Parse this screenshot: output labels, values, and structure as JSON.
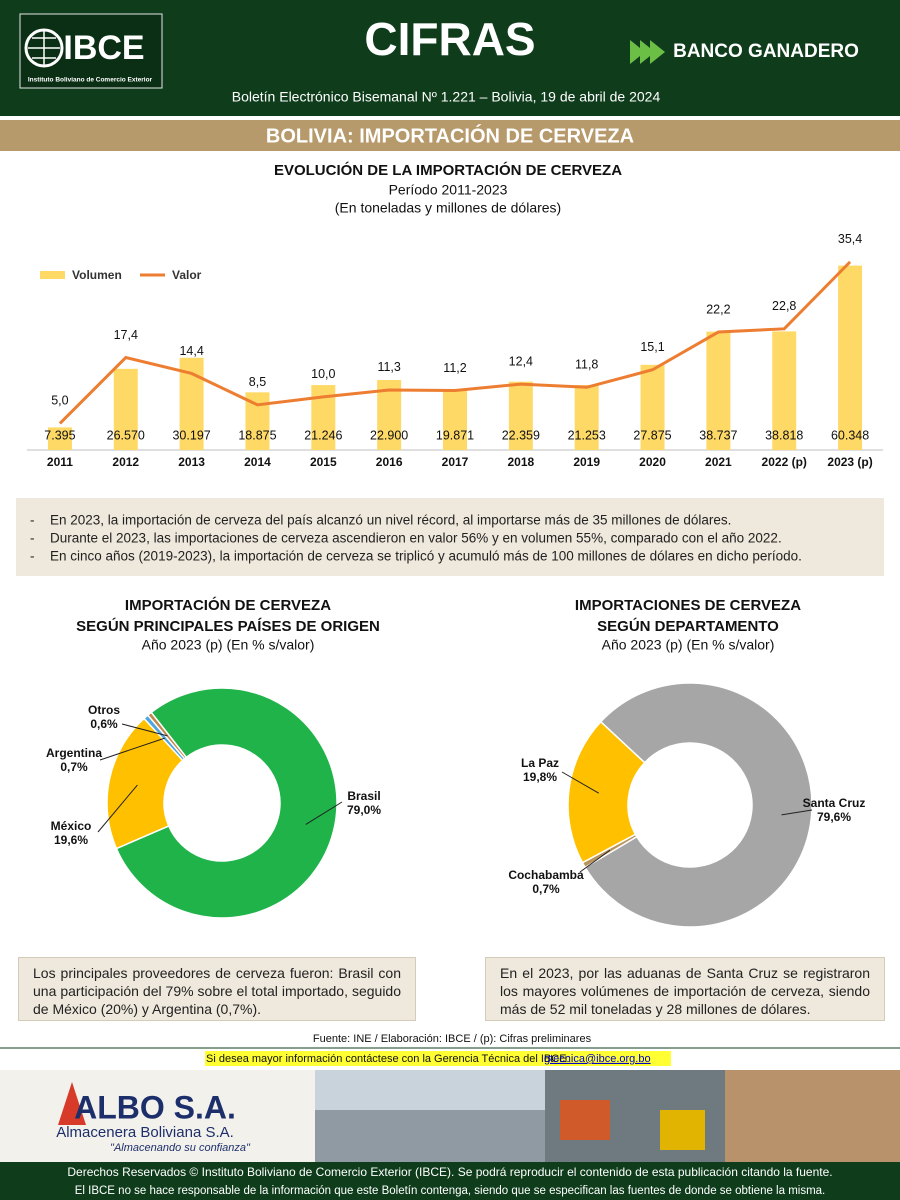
{
  "header": {
    "logo": "IBCE",
    "logo_caption": "Instituto Boliviano de Comercio Exterior",
    "title": "CIFRAS",
    "sponsor": "BANCO GANADERO",
    "bulletin": "Boletín Electrónico Bisemanal Nº 1.221 – Bolivia, 19 de abril de 2024"
  },
  "section_title": "BOLIVIA: IMPORTACIÓN DE CERVEZA",
  "chart_data": [
    {
      "type": "bar-line",
      "title": "EVOLUCIÓN DE LA IMPORTACIÓN DE CERVEZA",
      "subtitle": [
        "Período 2011-2023",
        "(En toneladas y millones de dólares)"
      ],
      "categories": [
        "2011",
        "2012",
        "2013",
        "2014",
        "2015",
        "2016",
        "2017",
        "2018",
        "2019",
        "2020",
        "2021",
        "2022 (p)",
        "2023 (p)"
      ],
      "series": [
        {
          "name": "Volumen",
          "type": "bar",
          "color": "#ffd966",
          "values": [
            7395,
            26570,
            30197,
            18875,
            21246,
            22900,
            19871,
            22359,
            21253,
            27875,
            38737,
            38818,
            60348
          ],
          "value_labels": [
            "7.395",
            "26.570",
            "30.197",
            "18.875",
            "21.246",
            "22.900",
            "19.871",
            "22.359",
            "21.253",
            "27.875",
            "38.737",
            "38.818",
            "60.348"
          ]
        },
        {
          "name": "Valor",
          "type": "line",
          "axis": "y2",
          "color": "#ed7d31",
          "values": [
            5.0,
            17.4,
            14.4,
            8.5,
            10.0,
            11.3,
            11.2,
            12.4,
            11.8,
            15.1,
            22.2,
            22.8,
            35.4
          ],
          "value_labels": [
            "5,0",
            "17,4",
            "14,4",
            "8,5",
            "10,0",
            "11,3",
            "11,2",
            "12,4",
            "11,8",
            "15,1",
            "22,2",
            "22,8",
            "35,4"
          ]
        }
      ],
      "ylim": [
        0,
        72000
      ],
      "y2lim": [
        0,
        41.4
      ],
      "legend": "top-left"
    },
    {
      "type": "donut",
      "title": [
        "IMPORTACIÓN DE CERVEZA",
        "SEGÚN PRINCIPALES PAÍSES DE ORIGEN"
      ],
      "subtitle": "Año 2023 (p) (En % s/valor)",
      "categories": [
        "Brasil",
        "México",
        "Argentina",
        "Otros"
      ],
      "values": [
        79.0,
        19.6,
        0.7,
        0.6
      ],
      "value_labels": [
        "79,0%",
        "19,6%",
        "0,7%",
        "0,6%"
      ],
      "colors": [
        "#1fb34a",
        "#ffc000",
        "#4ea6dc",
        "#c0874a"
      ]
    },
    {
      "type": "donut",
      "title": [
        "IMPORTACIONES DE CERVEZA",
        "SEGÚN DEPARTAMENTO"
      ],
      "subtitle": "Año 2023 (p) (En % s/valor)",
      "categories": [
        "Santa Cruz",
        "Cochabamba",
        "La Paz"
      ],
      "values": [
        79.6,
        0.7,
        19.8
      ],
      "value_labels": [
        "79,6%",
        "0,7%",
        "19,8%"
      ],
      "colors": [
        "#a6a6a6",
        "#b8935a",
        "#ffc000"
      ]
    }
  ],
  "highlights": [
    "En 2023, la importación de cerveza del país alcanzó un nivel récord, al importarse más de 35 millones de dólares.",
    "Durante el 2023, las importaciones de cerveza ascendieron en valor 56% y en volumen 55%, comparado con el año 2022.",
    "En cinco años (2019-2023), la importación de cerveza se triplicó y acumuló más de 100 millones de dólares en dicho período."
  ],
  "notes": [
    "Los principales proveedores de cerveza fueron: Brasil con una participación del 79% sobre el total importado, seguido de México (20%) y Argentina (0,7%).",
    "En el 2023, por las aduanas de Santa Cruz se registraron los mayores volúmenes de importación de cerveza, siendo más de 52 mil toneladas y 28 millones de dólares."
  ],
  "source": "Fuente: INE / Elaboración: IBCE / (p): Cifras preliminares",
  "contact": {
    "text": "Si desea mayor información contáctese con la Gerencia Técnica del IBCE:",
    "email": "gtecnica@ibce.org.bo"
  },
  "ad": {
    "brand": "ALBO S.A.",
    "name": "Almacenera Boliviana S.A.",
    "slogan": "\"Almacenando su confianza\""
  },
  "footer": [
    "Derechos Reservados © Instituto Boliviano de Comercio Exterior (IBCE). Se podrá reproducir el contenido de esta publicación citando la fuente.",
    "El IBCE no se hace responsable de la información que este Boletín contenga, siendo que se especifican las fuentes de donde se obtiene la misma."
  ]
}
